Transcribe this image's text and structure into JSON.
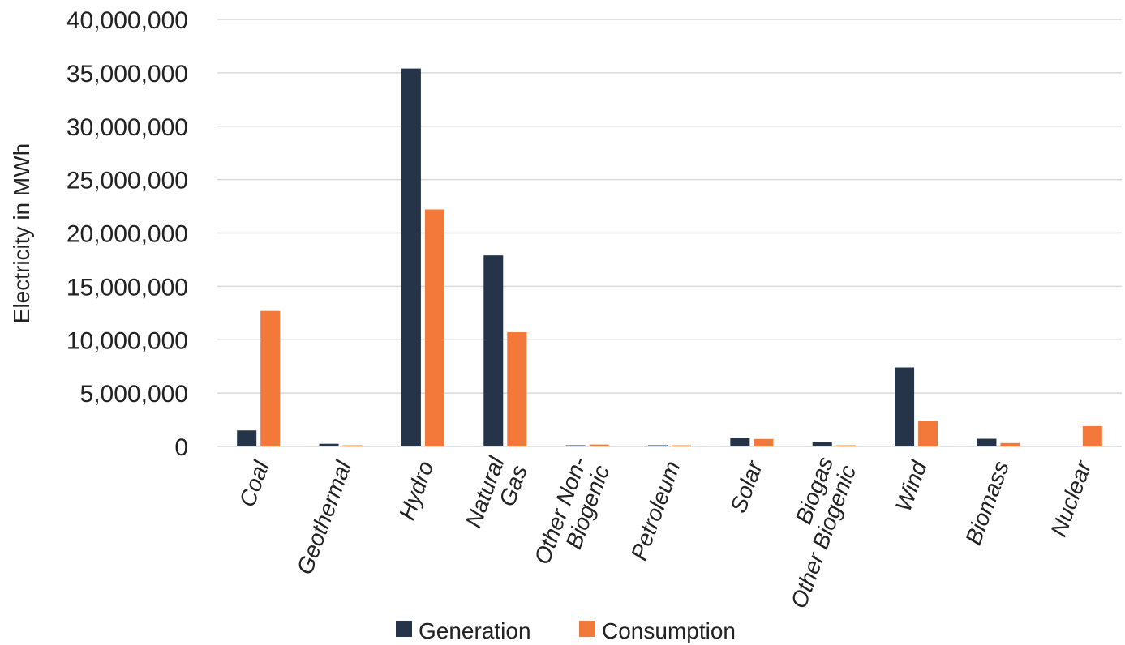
{
  "chart_data": {
    "type": "bar",
    "title": "",
    "xlabel": "",
    "ylabel": "Electricity in MWh",
    "ylim": [
      0,
      40000000
    ],
    "yticks": [
      0,
      5000000,
      10000000,
      15000000,
      20000000,
      25000000,
      30000000,
      35000000,
      40000000
    ],
    "ytick_labels": [
      "0",
      "5,000,000",
      "10,000,000",
      "15,000,000",
      "20,000,000",
      "25,000,000",
      "30,000,000",
      "35,000,000",
      "40,000,000"
    ],
    "grid": true,
    "legend_position": "bottom",
    "categories": [
      "Coal",
      "Geothermal",
      "Hydro",
      "Natural Gas",
      "Other Non-Biogenic",
      "Petroleum",
      "Solar",
      "Biogas Other Biogenic",
      "Wind",
      "Biomass",
      "Nuclear"
    ],
    "category_lines": [
      [
        "Coal"
      ],
      [
        "Geothermal"
      ],
      [
        "Hydro"
      ],
      [
        "Natural",
        "Gas"
      ],
      [
        "Other Non-",
        "Biogenic"
      ],
      [
        "Petroleum"
      ],
      [
        "Solar"
      ],
      [
        "Biogas",
        "Other Biogenic"
      ],
      [
        "Wind"
      ],
      [
        "Biomass"
      ],
      [
        "Nuclear"
      ]
    ],
    "series": [
      {
        "name": "Generation",
        "color": "#253449",
        "values": [
          1500000,
          250000,
          35400000,
          17900000,
          80000,
          60000,
          780000,
          380000,
          7400000,
          720000,
          0
        ]
      },
      {
        "name": "Consumption",
        "color": "#f3793b",
        "values": [
          12700000,
          80000,
          22200000,
          10700000,
          180000,
          60000,
          700000,
          80000,
          2400000,
          320000,
          1900000
        ]
      }
    ]
  }
}
